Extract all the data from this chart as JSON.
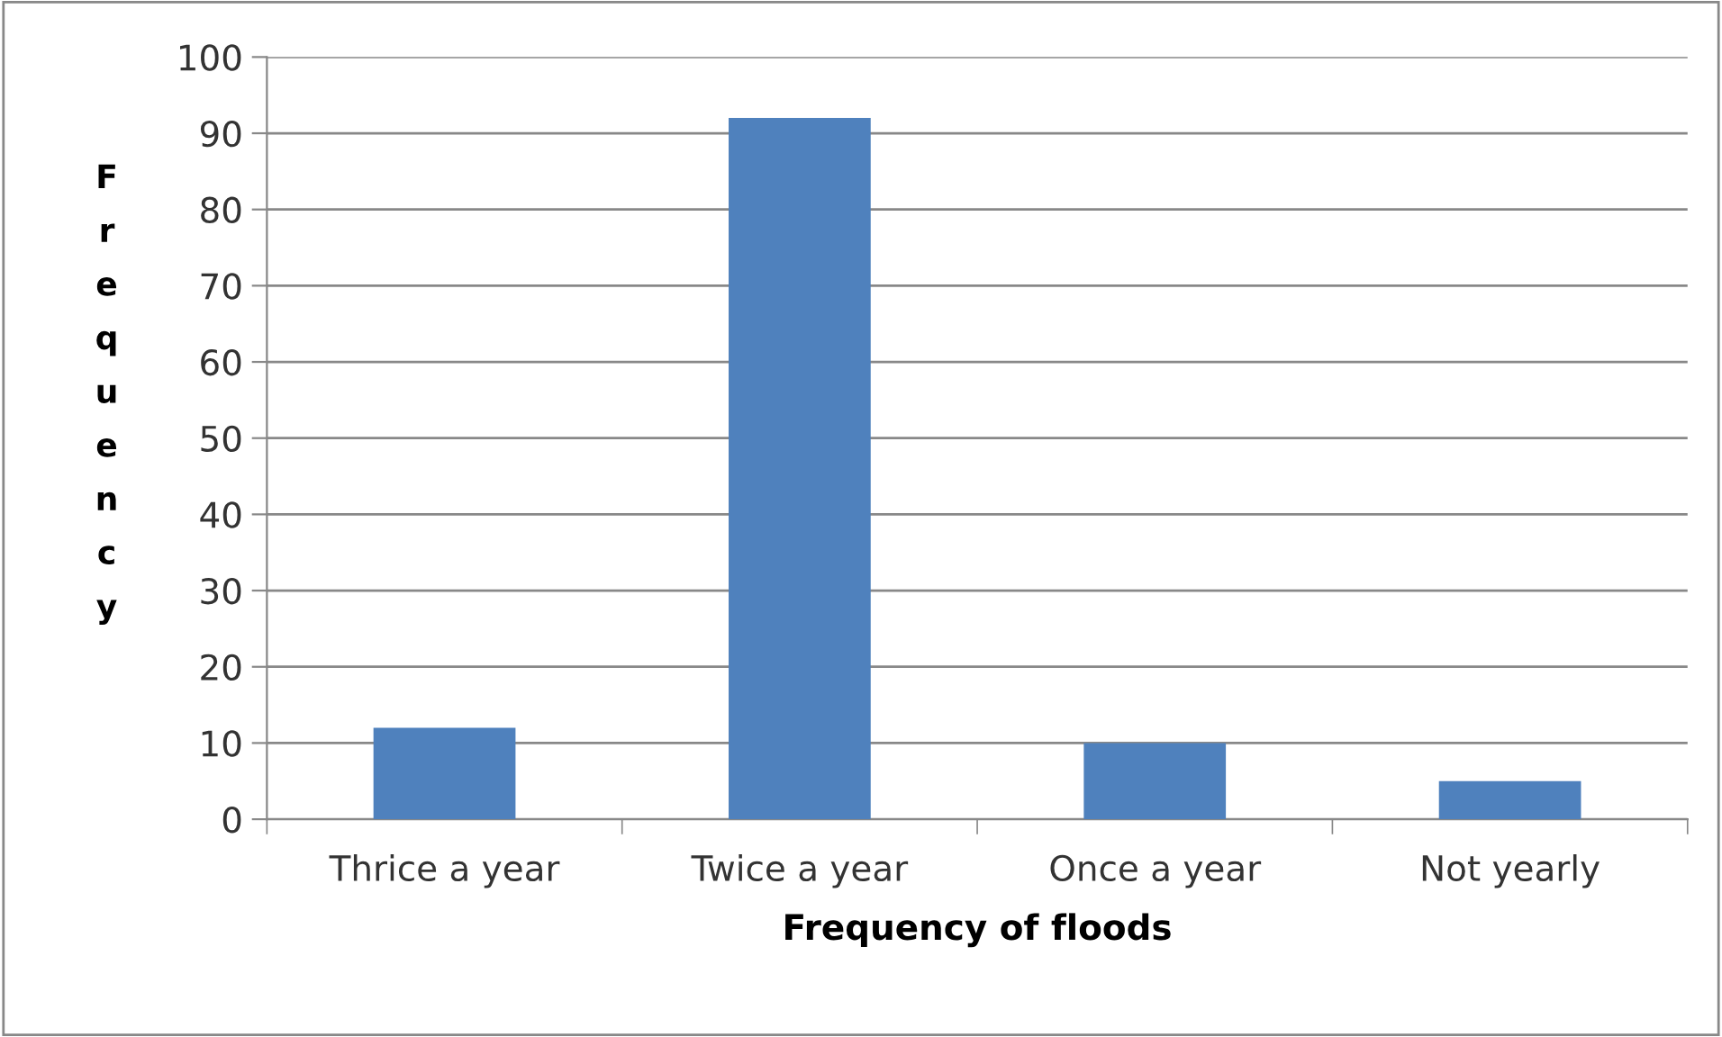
{
  "chart_data": {
    "type": "bar",
    "xlabel": "Frequency of floods",
    "ylabel": "Frequency",
    "categories": [
      "Thrice a year",
      "Twice a year",
      "Once a year",
      "Not yearly"
    ],
    "values": [
      12,
      92,
      10,
      5
    ],
    "color": "#4f81bd",
    "ylim": [
      0,
      100
    ],
    "yticks": [
      0,
      10,
      20,
      30,
      40,
      50,
      60,
      70,
      80,
      90,
      100
    ],
    "grid": "y"
  }
}
